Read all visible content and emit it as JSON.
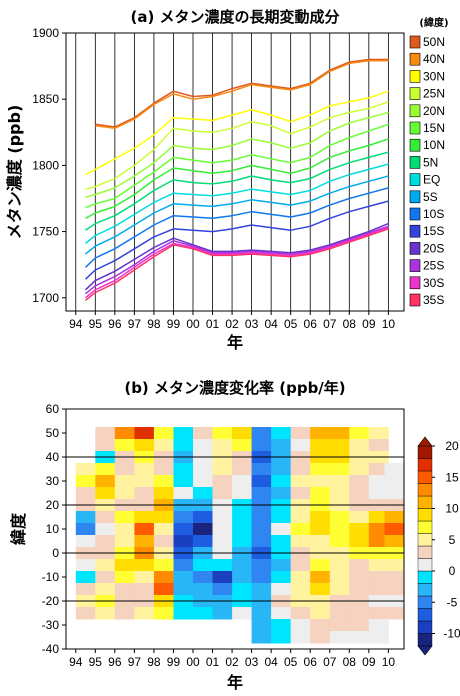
{
  "chart_data": [
    {
      "type": "line",
      "title": "(a) メタン濃度の長期変動成分",
      "xlabel": "年",
      "ylabel": "メタン濃度 (ppb)",
      "xlim": [
        1993.5,
        2010.8
      ],
      "ylim": [
        1690,
        1900
      ],
      "x_ticks": [
        1994,
        1995,
        1996,
        1997,
        1998,
        1999,
        2000,
        2001,
        2002,
        2003,
        2004,
        2005,
        2006,
        2007,
        2008,
        2009,
        2010
      ],
      "x_tick_labels": [
        "94",
        "95",
        "96",
        "97",
        "98",
        "99",
        "00",
        "01",
        "02",
        "03",
        "04",
        "05",
        "06",
        "07",
        "08",
        "09",
        "10"
      ],
      "y_ticks": [
        1700,
        1750,
        1800,
        1850,
        1900
      ],
      "grid": "vertical lines at each year",
      "legend_title": "(緯度)",
      "legend_position": "right",
      "x": [
        1994.5,
        1995,
        1996,
        1997,
        1998,
        1999,
        2000,
        2001,
        2002,
        2003,
        2004,
        2005,
        2006,
        2007,
        2008,
        2009,
        2010
      ],
      "series": [
        {
          "name": "50N",
          "color": "#e05a1e",
          "start": 1995,
          "values": [
            null,
            1831,
            1829,
            1836,
            1847,
            1856,
            1852,
            1853,
            1858,
            1862,
            1860,
            1858,
            1862,
            1872,
            1878,
            1880,
            1880
          ]
        },
        {
          "name": "40N",
          "color": "#f58a14",
          "start": 1995,
          "values": [
            null,
            1830,
            1828,
            1835,
            1846,
            1854,
            1850,
            1852,
            1856,
            1861,
            1859,
            1857,
            1861,
            1871,
            1877,
            1879,
            1879
          ]
        },
        {
          "name": "30N",
          "color": "#ffff00",
          "start": 1994.5,
          "values": [
            1793,
            1797,
            1805,
            1813,
            1823,
            1836,
            1835,
            1834,
            1838,
            1842,
            1838,
            1833,
            1838,
            1845,
            1848,
            1851,
            1856
          ]
        },
        {
          "name": "25N",
          "color": "#ccff33",
          "start": 1994.5,
          "values": [
            1782,
            1784,
            1790,
            1800,
            1812,
            1828,
            1826,
            1825,
            1828,
            1833,
            1830,
            1824,
            1829,
            1836,
            1840,
            1843,
            1848
          ]
        },
        {
          "name": "20N",
          "color": "#99ff33",
          "start": 1994.5,
          "values": [
            1776,
            1778,
            1783,
            1792,
            1802,
            1815,
            1813,
            1812,
            1815,
            1820,
            1817,
            1813,
            1817,
            1826,
            1832,
            1836,
            1840
          ]
        },
        {
          "name": "15N",
          "color": "#66ff33",
          "start": 1994.5,
          "values": [
            1768,
            1771,
            1775,
            1785,
            1795,
            1806,
            1804,
            1802,
            1804,
            1808,
            1805,
            1802,
            1806,
            1815,
            1821,
            1826,
            1831
          ]
        },
        {
          "name": "10N",
          "color": "#33ee33",
          "start": 1994.5,
          "values": [
            1760,
            1764,
            1769,
            1778,
            1789,
            1798,
            1796,
            1794,
            1796,
            1800,
            1797,
            1794,
            1798,
            1806,
            1811,
            1815,
            1820
          ]
        },
        {
          "name": "5N",
          "color": "#00dd77",
          "start": 1994.5,
          "values": [
            1751,
            1756,
            1762,
            1771,
            1781,
            1789,
            1787,
            1786,
            1788,
            1792,
            1789,
            1787,
            1790,
            1797,
            1802,
            1806,
            1810
          ]
        },
        {
          "name": "EQ",
          "color": "#00dddd",
          "start": 1994.5,
          "values": [
            1741,
            1747,
            1754,
            1763,
            1772,
            1779,
            1778,
            1777,
            1779,
            1782,
            1780,
            1778,
            1781,
            1788,
            1793,
            1797,
            1801
          ]
        },
        {
          "name": "5S",
          "color": "#00aaee",
          "start": 1994.5,
          "values": [
            1733,
            1739,
            1746,
            1755,
            1764,
            1771,
            1770,
            1769,
            1771,
            1774,
            1772,
            1770,
            1773,
            1779,
            1784,
            1788,
            1792
          ]
        },
        {
          "name": "10S",
          "color": "#1177ee",
          "start": 1994.5,
          "values": [
            1723,
            1730,
            1737,
            1746,
            1755,
            1762,
            1761,
            1760,
            1762,
            1765,
            1763,
            1761,
            1764,
            1770,
            1775,
            1779,
            1783
          ]
        },
        {
          "name": "15S",
          "color": "#3344dd",
          "start": 1994.5,
          "values": [
            1714,
            1721,
            1728,
            1737,
            1746,
            1752,
            1751,
            1750,
            1752,
            1755,
            1753,
            1751,
            1754,
            1760,
            1765,
            1769,
            1773
          ]
        },
        {
          "name": "20S",
          "color": "#6633cc",
          "start": 1994.5,
          "values": [
            1706,
            1713,
            1720,
            1729,
            1738,
            1745,
            1740,
            1735,
            1735,
            1736,
            1735,
            1734,
            1736,
            1740,
            1745,
            1750,
            1756
          ]
        },
        {
          "name": "25S",
          "color": "#aa33dd",
          "start": 1994.5,
          "values": [
            1703,
            1709,
            1716,
            1725,
            1735,
            1743,
            1739,
            1734,
            1734,
            1735,
            1734,
            1733,
            1735,
            1739,
            1744,
            1749,
            1754
          ]
        },
        {
          "name": "30S",
          "color": "#ee33cc",
          "start": 1994.5,
          "values": [
            1700,
            1706,
            1713,
            1723,
            1733,
            1741,
            1738,
            1733,
            1733,
            1734,
            1733,
            1732,
            1734,
            1738,
            1743,
            1748,
            1753
          ]
        },
        {
          "name": "35S",
          "color": "#ff3366",
          "start": 1994.5,
          "values": [
            1698,
            1704,
            1711,
            1721,
            1731,
            1740,
            1737,
            1732,
            1732,
            1733,
            1732,
            1731,
            1733,
            1737,
            1742,
            1747,
            1752
          ]
        }
      ]
    },
    {
      "type": "heatmap",
      "title": "(b) メタン濃度変化率 (ppb/年)",
      "xlabel": "年",
      "ylabel": "緯度",
      "xlim": [
        1993.5,
        2010.8
      ],
      "ylim": [
        -40,
        60
      ],
      "x_ticks": [
        1994,
        1995,
        1996,
        1997,
        1998,
        1999,
        2000,
        2001,
        2002,
        2003,
        2004,
        2005,
        2006,
        2007,
        2008,
        2009,
        2010
      ],
      "x_tick_labels": [
        "94",
        "95",
        "96",
        "97",
        "98",
        "99",
        "00",
        "01",
        "02",
        "03",
        "04",
        "05",
        "06",
        "07",
        "08",
        "09",
        "10"
      ],
      "y_ticks": [
        -40,
        -30,
        -20,
        -10,
        0,
        10,
        20,
        30,
        40,
        50,
        60
      ],
      "reference_lines": [
        -20,
        0,
        20,
        40
      ],
      "colorbar": {
        "levels": [
          -12,
          -10,
          -8,
          -6,
          -4,
          -2,
          0,
          2,
          4,
          6,
          8,
          10,
          12,
          14,
          16,
          18,
          20
        ],
        "colors": [
          "#1a237e",
          "#1a3fbf",
          "#1f5de0",
          "#2f86f0",
          "#28b6f6",
          "#00e5ff",
          "#eeeeee",
          "#f6d3bf",
          "#fff3a0",
          "#ffff33",
          "#ffdd00",
          "#ffb300",
          "#ff8c00",
          "#ff5a00",
          "#e03000",
          "#a01800"
        ],
        "tick_labels": [
          "-10",
          "-5",
          "0",
          "5",
          "10",
          "15",
          "20"
        ],
        "tick_values": [
          -10,
          -5,
          0,
          5,
          10,
          15,
          20
        ],
        "extend": "both"
      },
      "latitudes": [
        50,
        45,
        40,
        35,
        30,
        25,
        20,
        15,
        10,
        5,
        0,
        -5,
        -10,
        -15,
        -20,
        -25,
        -30,
        -35
      ],
      "years": [
        1994.5,
        1995.5,
        1996.5,
        1997.5,
        1998.5,
        1999.5,
        2000.5,
        2001.5,
        2002.5,
        2003.5,
        2004.5,
        2005.5,
        2006.5,
        2007.5,
        2008.5,
        2009.5,
        2010.3
      ],
      "values": [
        [
          null,
          3,
          12,
          16,
          6,
          -1,
          3,
          7,
          8,
          -6,
          -2,
          2,
          10,
          11,
          7,
          4,
          null
        ],
        [
          null,
          2,
          6,
          9,
          4,
          -2,
          1,
          5,
          6,
          -5,
          -3,
          1,
          8,
          9,
          5,
          3,
          null
        ],
        [
          null,
          -2,
          2,
          6,
          3,
          -3,
          0,
          4,
          3,
          -7,
          -4,
          2,
          8,
          8,
          5,
          4,
          null
        ],
        [
          4,
          7,
          3,
          5,
          3,
          -2,
          1,
          4,
          2,
          -6,
          -3,
          3,
          7,
          7,
          4,
          2,
          1
        ],
        [
          6,
          10,
          5,
          4,
          6,
          -1,
          0,
          3,
          1,
          -7,
          -2,
          4,
          5,
          5,
          3,
          1,
          0
        ],
        [
          3,
          8,
          4,
          3,
          8,
          0,
          -1,
          2,
          0,
          -6,
          -3,
          3,
          6,
          5,
          2,
          1,
          1
        ],
        [
          2,
          5,
          3,
          2,
          10,
          -4,
          -3,
          1,
          -1,
          -5,
          -2,
          4,
          7,
          5,
          3,
          3,
          2
        ],
        [
          -3,
          2,
          6,
          9,
          8,
          -6,
          -7,
          0,
          -2,
          -6,
          -1,
          5,
          8,
          6,
          5,
          8,
          10
        ],
        [
          -5,
          1,
          5,
          14,
          4,
          -8,
          -11,
          1,
          -1,
          -5,
          0,
          6,
          8,
          7,
          9,
          13,
          15
        ],
        [
          0,
          2,
          4,
          11,
          3,
          -9,
          -8,
          1,
          -2,
          -6,
          -1,
          4,
          5,
          6,
          8,
          12,
          10
        ],
        [
          2,
          3,
          6,
          12,
          5,
          -7,
          -4,
          0,
          -3,
          -7,
          -2,
          3,
          4,
          5,
          6,
          7,
          6
        ],
        [
          1,
          4,
          8,
          8,
          6,
          -5,
          -1,
          -2,
          -4,
          -6,
          -3,
          3,
          6,
          4,
          3,
          4,
          4
        ],
        [
          -1,
          3,
          6,
          4,
          12,
          -4,
          -6,
          -10,
          -3,
          -5,
          -2,
          4,
          10,
          5,
          2,
          3,
          3
        ],
        [
          3,
          5,
          2,
          3,
          15,
          -3,
          -4,
          -6,
          -2,
          -4,
          1,
          5,
          8,
          4,
          3,
          2,
          2
        ],
        [
          4,
          6,
          3,
          2,
          9,
          -2,
          -3,
          -3,
          -1,
          -3,
          2,
          4,
          5,
          3,
          2,
          1,
          1
        ],
        [
          2,
          4,
          3,
          5,
          7,
          -1,
          -2,
          -4,
          0,
          -3,
          1,
          3,
          4,
          3,
          3,
          2,
          2
        ],
        [
          null,
          null,
          null,
          null,
          null,
          null,
          null,
          null,
          null,
          -4,
          -1,
          1,
          3,
          2,
          2,
          1,
          null
        ],
        [
          null,
          null,
          null,
          null,
          null,
          null,
          null,
          null,
          null,
          -3,
          -2,
          0,
          2,
          1,
          1,
          1,
          null
        ]
      ]
    }
  ]
}
